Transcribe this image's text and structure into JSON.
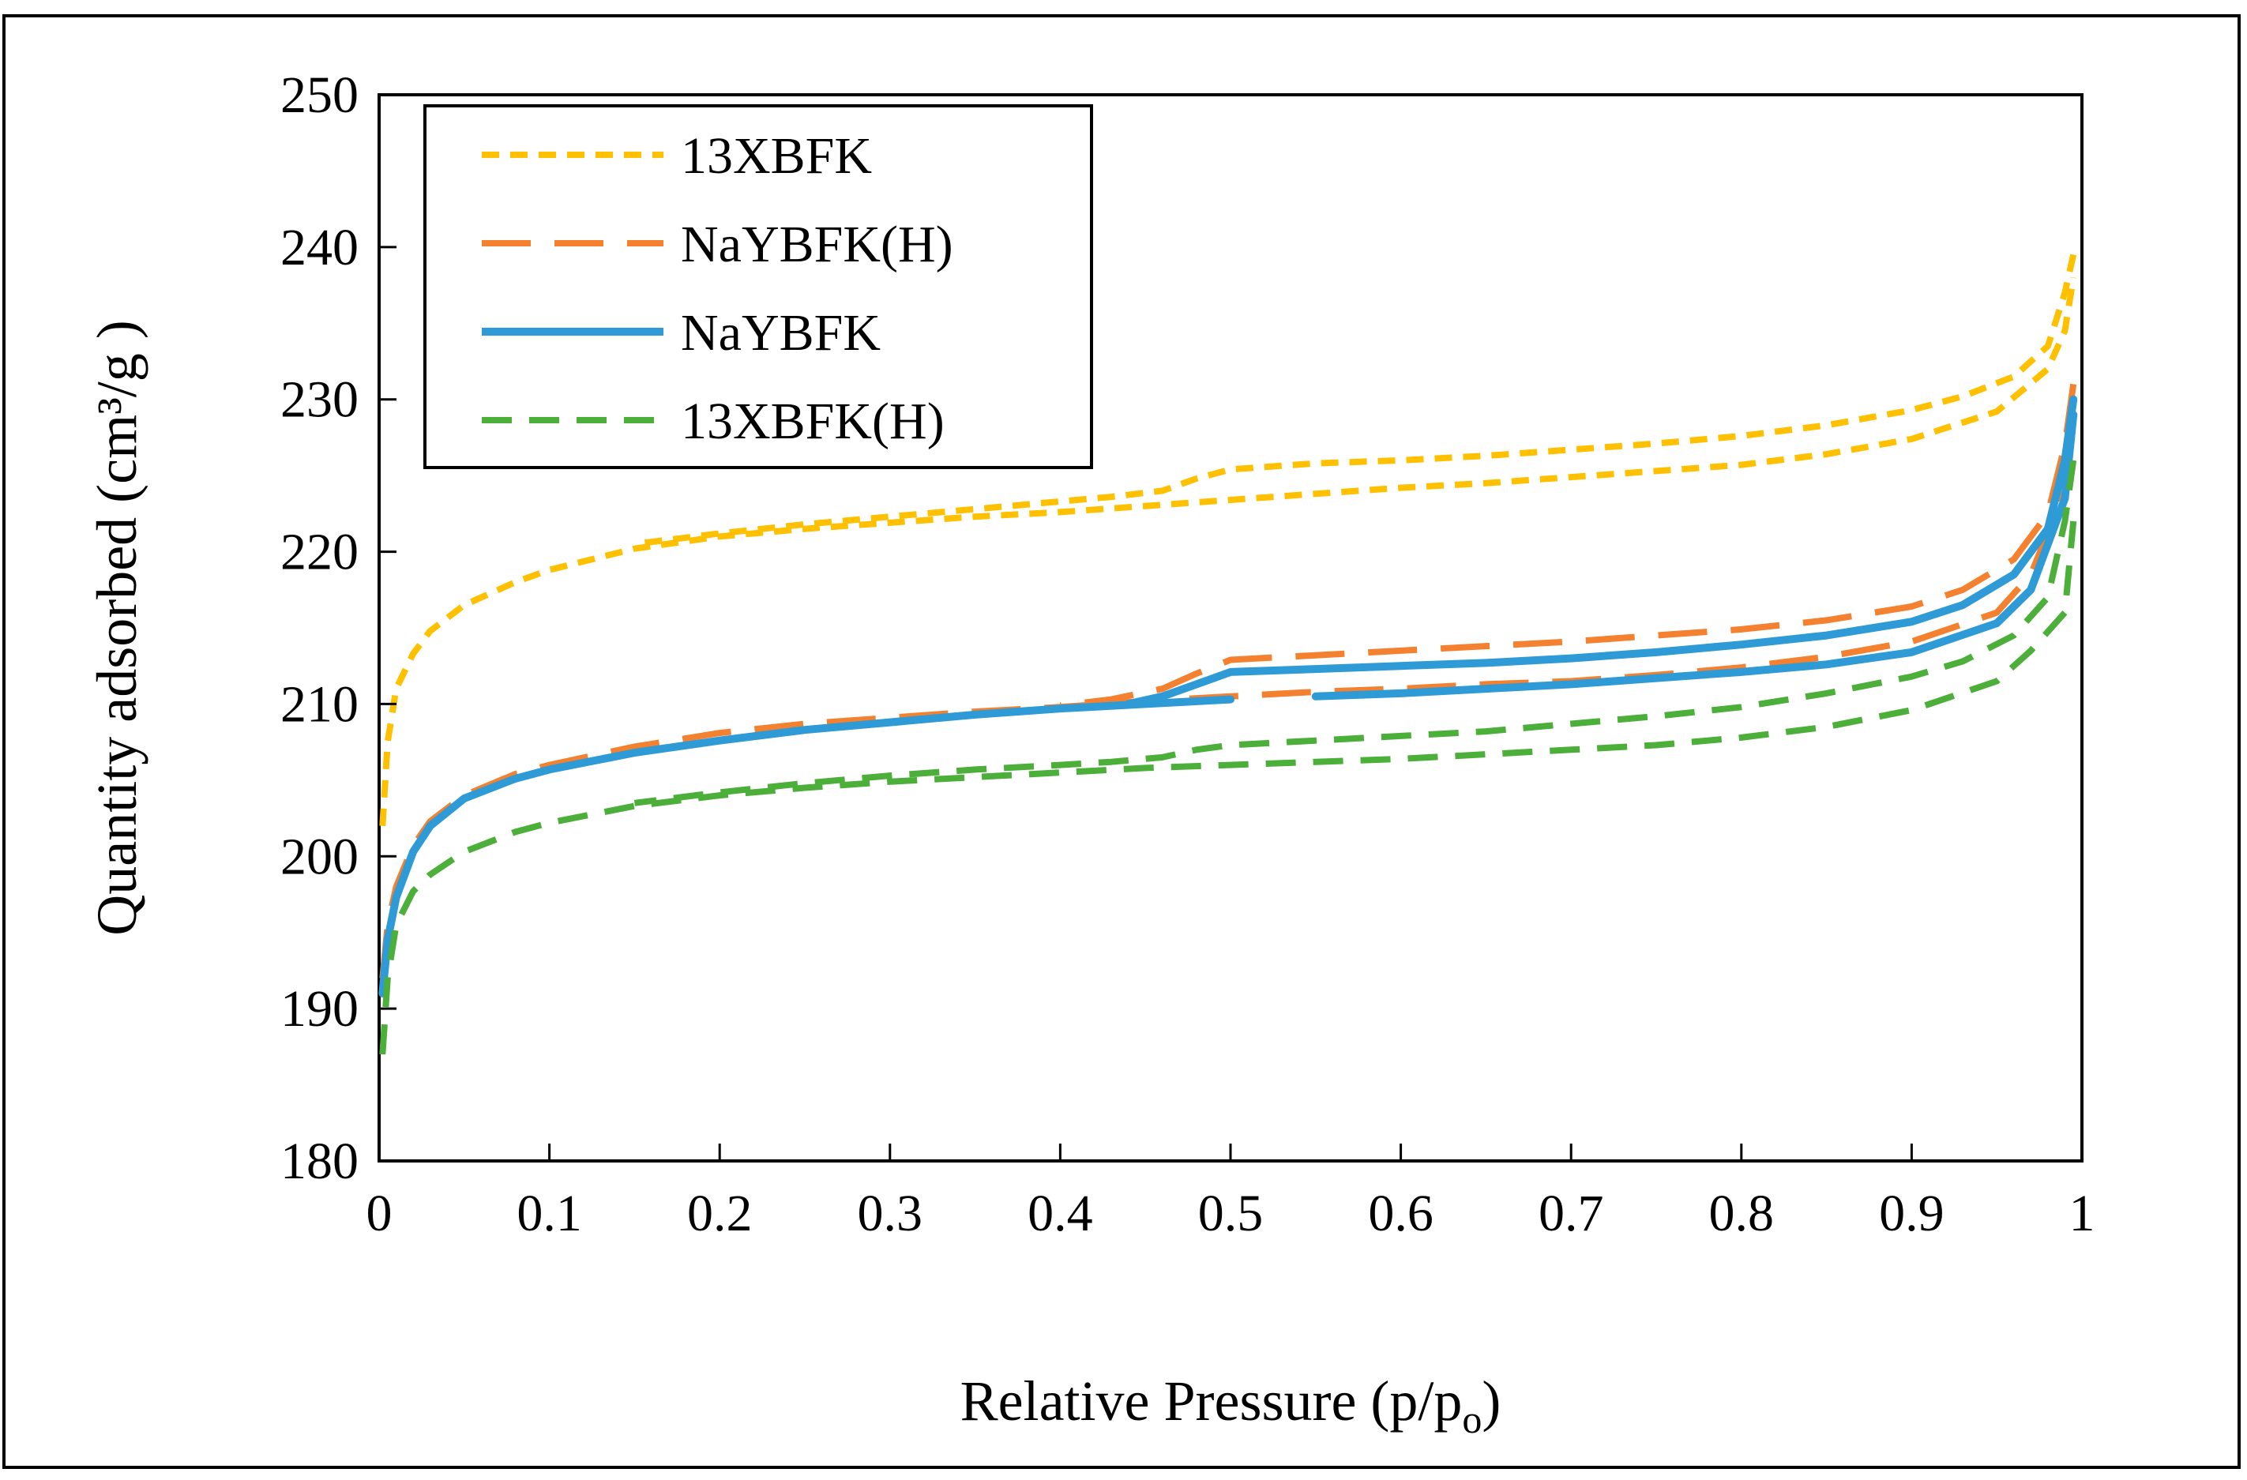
{
  "chart_data": {
    "type": "line",
    "title": "",
    "xlabel": "Relative Pressure (p/p",
    "xlabel_sub": "o",
    "xlabel_close": ")",
    "ylabel": "Quantity adsorbed (cm³/g )",
    "xlim": [
      0,
      1
    ],
    "ylim": [
      180,
      250
    ],
    "grid": false,
    "legend_position": "top-left",
    "x_ticks": [
      0,
      0.1,
      0.2,
      0.3,
      0.4,
      0.5,
      0.6,
      0.7,
      0.8,
      0.9,
      1
    ],
    "x_tick_labels": [
      "0",
      "0.1",
      "0.2",
      "0.3",
      "0.4",
      "0.5",
      "0.6",
      "0.7",
      "0.8",
      "0.9",
      "1"
    ],
    "y_ticks": [
      180,
      190,
      200,
      210,
      220,
      230,
      240,
      250
    ],
    "y_tick_labels": [
      "180",
      "190",
      "200",
      "210",
      "220",
      "230",
      "240",
      "250"
    ],
    "series": [
      {
        "name": "13XBFK",
        "color": "#FFC000",
        "dash": "short",
        "adsorption": {
          "x": [
            0.002,
            0.005,
            0.01,
            0.02,
            0.03,
            0.05,
            0.08,
            0.1,
            0.15,
            0.2,
            0.25,
            0.3,
            0.35,
            0.4,
            0.45,
            0.5,
            0.55,
            0.6,
            0.65,
            0.7,
            0.75,
            0.8,
            0.85,
            0.9,
            0.95,
            0.98,
            0.99,
            0.995
          ],
          "y": [
            202,
            207.5,
            211,
            213.3,
            214.8,
            216.5,
            218,
            218.8,
            220.2,
            221,
            221.5,
            221.9,
            222.3,
            222.6,
            223,
            223.4,
            223.8,
            224.2,
            224.5,
            224.9,
            225.3,
            225.7,
            226.4,
            227.4,
            229.2,
            232,
            234.5,
            238
          ]
        },
        "desorption": {
          "x": [
            0.995,
            0.99,
            0.98,
            0.96,
            0.93,
            0.9,
            0.85,
            0.8,
            0.75,
            0.7,
            0.65,
            0.6,
            0.55,
            0.5,
            0.48,
            0.46,
            0.43,
            0.4,
            0.35,
            0.3,
            0.25,
            0.2,
            0.15
          ],
          "y": [
            239.5,
            237,
            233.5,
            231.5,
            230.2,
            229.3,
            228.3,
            227.6,
            227.1,
            226.7,
            226.3,
            226,
            225.8,
            225.4,
            224.8,
            224,
            223.6,
            223.3,
            222.8,
            222.3,
            221.8,
            221.2,
            220.5
          ]
        }
      },
      {
        "name": "NaYBFK(H)",
        "color": "#F4812F",
        "dash": "long",
        "adsorption": {
          "x": [
            0.002,
            0.005,
            0.01,
            0.02,
            0.03,
            0.05,
            0.08,
            0.1,
            0.15,
            0.2,
            0.25,
            0.3,
            0.35,
            0.4,
            0.45,
            0.5,
            0.55,
            0.6,
            0.65,
            0.7,
            0.75,
            0.8,
            0.85,
            0.9,
            0.95,
            0.97,
            0.99,
            0.995
          ],
          "y": [
            192,
            195.5,
            198,
            200.7,
            202.3,
            204,
            205.4,
            206,
            207.2,
            208.1,
            208.7,
            209.1,
            209.5,
            209.8,
            210.2,
            210.5,
            210.8,
            211,
            211.3,
            211.5,
            211.9,
            212.4,
            213.1,
            214.1,
            216,
            218.5,
            224,
            230
          ]
        },
        "desorption": {
          "x": [
            0.995,
            0.99,
            0.98,
            0.96,
            0.93,
            0.9,
            0.85,
            0.8,
            0.75,
            0.7,
            0.65,
            0.6,
            0.55,
            0.5,
            0.48,
            0.46,
            0.43,
            0.4
          ],
          "y": [
            231,
            227,
            222.5,
            219.5,
            217.5,
            216.4,
            215.5,
            214.9,
            214.5,
            214.1,
            213.8,
            213.5,
            213.2,
            212.9,
            212,
            211,
            210.3,
            209.9
          ]
        }
      },
      {
        "name": "NaYBFK",
        "color": "#2E9AD6",
        "dash": "solid",
        "adsorption": {
          "x": [
            0.002,
            0.005,
            0.01,
            0.02,
            0.03,
            0.05,
            0.08,
            0.1,
            0.15,
            0.2,
            0.25,
            0.3,
            0.35,
            0.4,
            0.45,
            0.5
          ],
          "y": [
            191,
            194.5,
            197.3,
            200.3,
            202,
            203.8,
            205.1,
            205.7,
            206.8,
            207.6,
            208.3,
            208.8,
            209.3,
            209.7,
            210,
            210.3
          ]
        },
        "adsorption_high": {
          "x": [
            0.55,
            0.6,
            0.65,
            0.7,
            0.75,
            0.8,
            0.85,
            0.9,
            0.95,
            0.97,
            0.99,
            0.995
          ],
          "y": [
            210.5,
            210.7,
            211,
            211.3,
            211.7,
            212.1,
            212.6,
            213.4,
            215.3,
            217.5,
            223.5,
            229
          ]
        },
        "desorption": {
          "x": [
            0.995,
            0.99,
            0.98,
            0.96,
            0.93,
            0.9,
            0.85,
            0.8,
            0.75,
            0.7,
            0.65,
            0.6,
            0.55,
            0.5,
            0.48,
            0.46,
            0.44
          ],
          "y": [
            230,
            226,
            221.5,
            218.5,
            216.5,
            215.4,
            214.5,
            213.9,
            213.4,
            213,
            212.7,
            212.5,
            212.3,
            212.1,
            211.3,
            210.5,
            210
          ]
        }
      },
      {
        "name": "13XBFK(H)",
        "color": "#4CAF3A",
        "dash": "medium",
        "adsorption": {
          "x": [
            0.002,
            0.005,
            0.01,
            0.02,
            0.03,
            0.05,
            0.08,
            0.1,
            0.15,
            0.2,
            0.25,
            0.3,
            0.35,
            0.4,
            0.45,
            0.5,
            0.55,
            0.6,
            0.65,
            0.7,
            0.75,
            0.8,
            0.85,
            0.9,
            0.95,
            0.97,
            0.99,
            0.995
          ],
          "y": [
            187,
            192,
            195.5,
            197.7,
            198.8,
            200.3,
            201.6,
            202.2,
            203.3,
            204,
            204.5,
            204.9,
            205.2,
            205.5,
            205.8,
            206,
            206.2,
            206.4,
            206.7,
            207,
            207.3,
            207.8,
            208.5,
            209.6,
            211.5,
            213.5,
            216,
            222
          ]
        },
        "desorption": {
          "x": [
            0.995,
            0.99,
            0.98,
            0.96,
            0.93,
            0.9,
            0.85,
            0.8,
            0.75,
            0.7,
            0.65,
            0.6,
            0.55,
            0.5,
            0.48,
            0.46,
            0.43,
            0.4,
            0.35,
            0.3,
            0.25,
            0.2,
            0.15
          ],
          "y": [
            226,
            222,
            217,
            214.5,
            212.8,
            211.8,
            210.7,
            209.8,
            209.2,
            208.7,
            208.2,
            207.9,
            207.6,
            207.3,
            207,
            206.5,
            206.2,
            206,
            205.7,
            205.3,
            204.8,
            204.2,
            203.5
          ]
        }
      }
    ]
  }
}
